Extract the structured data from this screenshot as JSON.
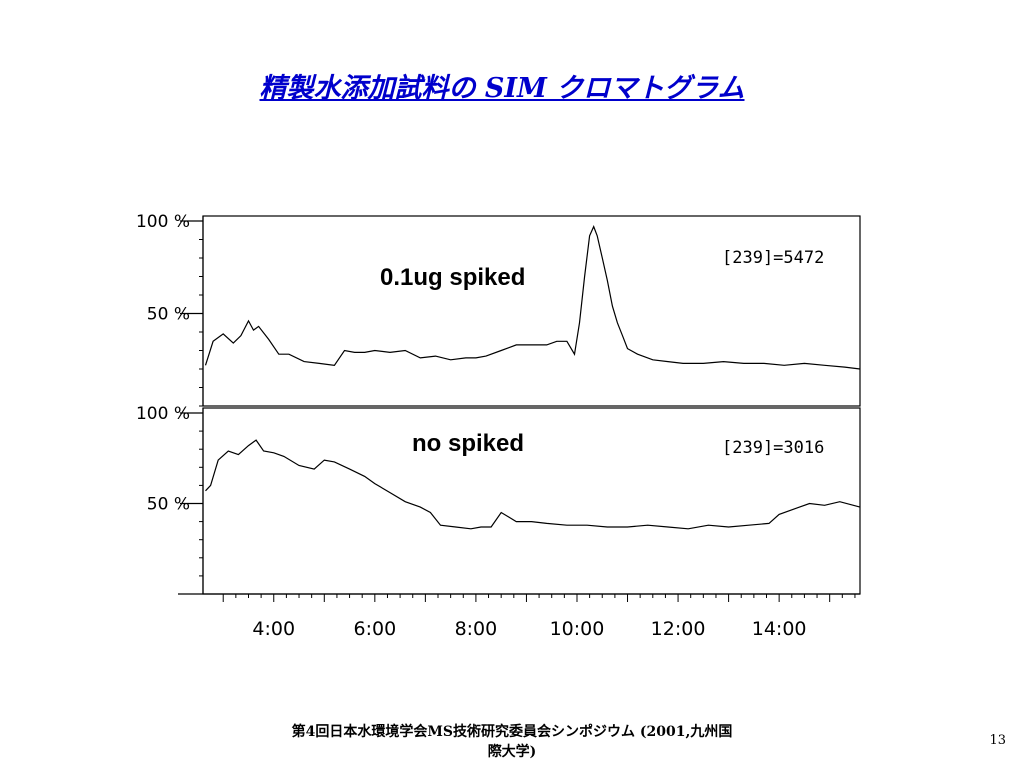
{
  "slide": {
    "title": "精製水添加試料の SIM クロマトグラム",
    "footer_line1": "第4回日本水環境学会MS技術研究委員会シンポジウム (2001,九州国",
    "footer_line2": "際大学)",
    "page_number": "13",
    "title_color": "#0000cc"
  },
  "chart_data": [
    {
      "type": "line",
      "panel": "top",
      "annotation": "0.1ug spiked",
      "label": "[239]=5472",
      "y_tick_labels": [
        "100 %",
        "50 %"
      ],
      "y_ticks": [
        100,
        50
      ],
      "ylim": [
        0,
        100
      ],
      "xlim": [
        2.6,
        15.6
      ],
      "grid": false,
      "line_color": "#000000",
      "series": [
        {
          "x": [
            2.65,
            2.8,
            3.0,
            3.2,
            3.35,
            3.5,
            3.6,
            3.7,
            3.9,
            4.1,
            4.3,
            4.6,
            4.9,
            5.2,
            5.4,
            5.6,
            5.8,
            6.0,
            6.3,
            6.6,
            6.9,
            7.2,
            7.5,
            7.8,
            8.0,
            8.2,
            8.5,
            8.8,
            9.1,
            9.4,
            9.6,
            9.8,
            9.95,
            10.05,
            10.15,
            10.25,
            10.33,
            10.4,
            10.5,
            10.6,
            10.7,
            10.8,
            10.9,
            11.0,
            11.2,
            11.5,
            11.8,
            12.1,
            12.5,
            12.9,
            13.3,
            13.7,
            14.1,
            14.5,
            14.9,
            15.3,
            15.6
          ],
          "y": [
            22,
            35,
            39,
            34,
            38,
            46,
            41,
            43,
            36,
            28,
            28,
            24,
            23,
            22,
            30,
            29,
            29,
            30,
            29,
            30,
            26,
            27,
            25,
            26,
            26,
            27,
            30,
            33,
            33,
            33,
            35,
            35,
            28,
            45,
            70,
            92,
            97,
            92,
            80,
            68,
            54,
            45,
            38,
            31,
            28,
            25,
            24,
            23,
            23,
            24,
            23,
            23,
            22,
            23,
            22,
            21,
            20
          ]
        }
      ]
    },
    {
      "type": "line",
      "panel": "bottom",
      "annotation": "no spiked",
      "label": "[239]=3016",
      "y_tick_labels": [
        "100 %",
        "50 %"
      ],
      "y_ticks": [
        100,
        50
      ],
      "ylim": [
        0,
        100
      ],
      "xlim": [
        2.6,
        15.6
      ],
      "x_tick_labels": [
        "4:00",
        "6:00",
        "8:00",
        "10:00",
        "12:00",
        "14:00"
      ],
      "x_ticks": [
        4,
        6,
        8,
        10,
        12,
        14
      ],
      "grid": false,
      "line_color": "#000000",
      "series": [
        {
          "x": [
            2.65,
            2.75,
            2.9,
            3.1,
            3.3,
            3.5,
            3.65,
            3.8,
            4.0,
            4.2,
            4.5,
            4.8,
            5.0,
            5.2,
            5.5,
            5.8,
            6.0,
            6.3,
            6.6,
            6.9,
            7.1,
            7.3,
            7.6,
            7.9,
            8.1,
            8.3,
            8.5,
            8.8,
            9.1,
            9.4,
            9.8,
            10.2,
            10.6,
            11.0,
            11.4,
            11.8,
            12.2,
            12.6,
            13.0,
            13.4,
            13.8,
            14.0,
            14.3,
            14.6,
            14.9,
            15.2,
            15.6
          ],
          "y": [
            57,
            60,
            74,
            79,
            77,
            82,
            85,
            79,
            78,
            76,
            71,
            69,
            74,
            73,
            69,
            65,
            61,
            56,
            51,
            48,
            45,
            38,
            37,
            36,
            37,
            37,
            45,
            40,
            40,
            39,
            38,
            38,
            37,
            37,
            38,
            37,
            36,
            38,
            37,
            38,
            39,
            44,
            47,
            50,
            49,
            51,
            48
          ]
        }
      ]
    }
  ]
}
